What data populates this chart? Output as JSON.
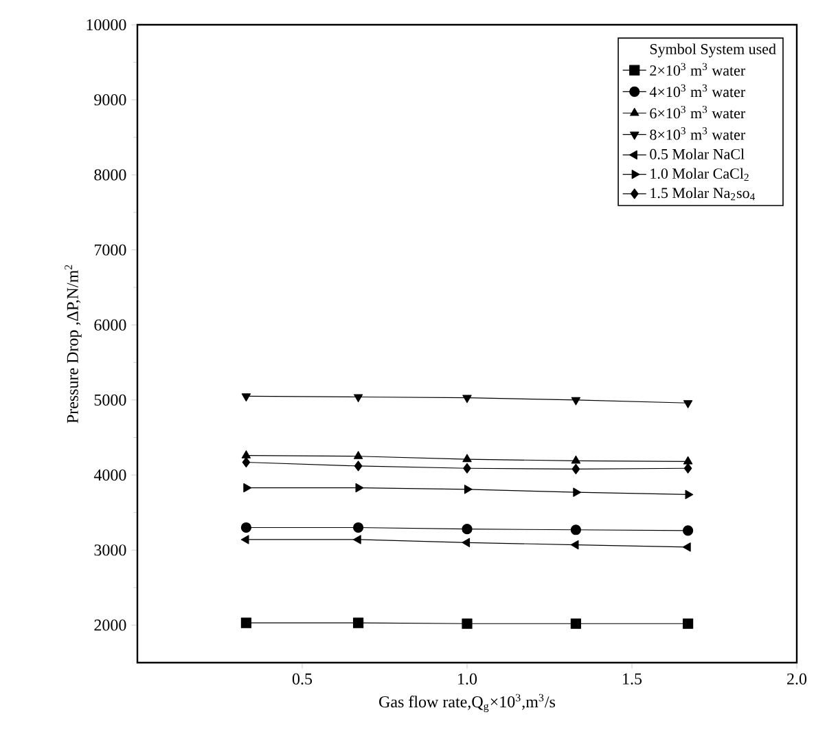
{
  "chart_data": {
    "type": "line",
    "xlabel": "Gas flow rate,Q$_{g}$×10$^{3}$,m$^{3}$/s",
    "ylabel": "Pressure Drop ,ΔP,N/m$^{2}$",
    "legend_title": "Symbol   System used",
    "x": [
      0.33,
      0.67,
      1.0,
      1.33,
      1.67
    ],
    "xlim": [
      0,
      2
    ],
    "xticks": [
      0.5,
      {
        "value": 1,
        "label": "1.0"
      },
      1.5,
      {
        "value": 2,
        "label": "2.0"
      }
    ],
    "ylim": [
      1500,
      10000
    ],
    "yticks": [
      2000,
      3000,
      4000,
      5000,
      6000,
      7000,
      8000,
      9000,
      10000
    ],
    "grid": false,
    "legend": "top right",
    "line_style": "solid",
    "series": [
      {
        "name": "2×10$^{3}$ m$^{3}$ water",
        "color": "#000000",
        "marker": "square",
        "values": [
          2030,
          2030,
          2020,
          2020,
          2020
        ]
      },
      {
        "name": "4×10$^{3}$ m$^{3}$ water",
        "color": "#000000",
        "marker": "circle",
        "values": [
          3300,
          3300,
          3280,
          3270,
          3260
        ]
      },
      {
        "name": "6×10$^{3}$ m$^{3}$ water",
        "color": "#000000",
        "marker": "triangle",
        "values": [
          4260,
          4250,
          4210,
          4190,
          4180
        ]
      },
      {
        "name": "8×10$^{3}$ m$^{3}$ water",
        "color": "#000000",
        "marker": "triangle-down",
        "values": [
          5050,
          5040,
          5030,
          5000,
          4960
        ]
      },
      {
        "name": "0.5 Molar NaCl",
        "color": "#000000",
        "marker": "triangle-left",
        "values": [
          3140,
          3140,
          3100,
          3070,
          3040
        ]
      },
      {
        "name": "1.0 Molar CaCl$_{2}$",
        "color": "#000000",
        "marker": "triangle-right",
        "values": [
          3830,
          3830,
          3810,
          3770,
          3740
        ]
      },
      {
        "name": "1.5 Molar Na$_{2}$so$_{4}$",
        "color": "#000000",
        "marker": "diamond",
        "values": [
          4170,
          4120,
          4090,
          4080,
          4090
        ]
      }
    ]
  }
}
